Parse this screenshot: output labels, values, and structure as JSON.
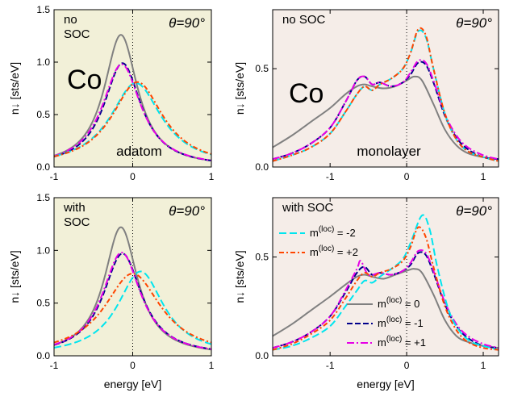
{
  "chart_data": [
    {
      "type": "line",
      "panel": "top-left",
      "bg": "#f2f0d8",
      "xlim": [
        -1,
        1
      ],
      "ylim": [
        0,
        1.5
      ],
      "xticks": [
        "-1",
        "0",
        "1"
      ],
      "yticks": [
        "0.0",
        "0.5",
        "1.0",
        "1.5"
      ],
      "ylabel": "n↓  [sts/eV]",
      "texts": {
        "soc": "no\nSOC",
        "theta": "θ=90°",
        "element": "Co",
        "label": "adatom"
      },
      "series": [
        {
          "color": "#808080",
          "dash": "",
          "e0": -0.15,
          "g": 0.26,
          "amp": 1.26
        },
        {
          "color": "#00008b",
          "dash": "7,3",
          "e0": -0.13,
          "g": 0.29,
          "amp": 0.99
        },
        {
          "color": "#e600e6",
          "dash": "9,3,2,3",
          "e0": -0.14,
          "g": 0.3,
          "amp": 0.98
        },
        {
          "color": "#00e5ee",
          "dash": "9,4",
          "e0": 0.04,
          "g": 0.4,
          "amp": 0.8
        },
        {
          "color": "#ff4500",
          "dash": "6,3,2,3",
          "e0": 0.06,
          "g": 0.4,
          "amp": 0.81
        }
      ]
    },
    {
      "type": "line",
      "panel": "top-right",
      "bg": "#f5ede8",
      "xlim": [
        -1.75,
        1.2
      ],
      "ylim": [
        0,
        0.8
      ],
      "xticks": [
        "-1",
        "0",
        "1"
      ],
      "yticks": [
        "0.0",
        "0.5"
      ],
      "ylabel": "n↓  [sts/eV]",
      "texts": {
        "soc": "no SOC",
        "theta": "θ=90°",
        "element": "Co",
        "label": "monolayer"
      },
      "series": [
        {
          "color": "#808080",
          "dash": "",
          "x": [
            -1.75,
            -1.5,
            -1.25,
            -1.0,
            -0.8,
            -0.65,
            -0.55,
            -0.45,
            -0.3,
            -0.15,
            0,
            0.1,
            0.2,
            0.35,
            0.5,
            0.65,
            0.8,
            1.0,
            1.2
          ],
          "y": [
            0.1,
            0.16,
            0.23,
            0.3,
            0.37,
            0.41,
            0.42,
            0.41,
            0.4,
            0.41,
            0.44,
            0.46,
            0.44,
            0.32,
            0.19,
            0.11,
            0.07,
            0.05,
            0.04
          ]
        },
        {
          "color": "#00008b",
          "dash": "7,3",
          "x": [
            -1.75,
            -1.5,
            -1.25,
            -1.0,
            -0.8,
            -0.65,
            -0.55,
            -0.45,
            -0.35,
            -0.2,
            -0.05,
            0.05,
            0.15,
            0.25,
            0.35,
            0.5,
            0.65,
            0.8,
            1.0,
            1.2
          ],
          "y": [
            0.04,
            0.07,
            0.12,
            0.2,
            0.33,
            0.44,
            0.46,
            0.42,
            0.43,
            0.41,
            0.43,
            0.47,
            0.53,
            0.52,
            0.43,
            0.26,
            0.15,
            0.09,
            0.05,
            0.04
          ]
        },
        {
          "color": "#e600e6",
          "dash": "9,3,2,3",
          "x": [
            -1.75,
            -1.5,
            -1.25,
            -1.0,
            -0.8,
            -0.65,
            -0.55,
            -0.45,
            -0.35,
            -0.2,
            -0.05,
            0.05,
            0.15,
            0.25,
            0.35,
            0.5,
            0.65,
            0.8,
            1.0,
            1.2
          ],
          "y": [
            0.04,
            0.07,
            0.12,
            0.2,
            0.33,
            0.44,
            0.46,
            0.42,
            0.43,
            0.41,
            0.43,
            0.48,
            0.54,
            0.53,
            0.44,
            0.27,
            0.16,
            0.1,
            0.06,
            0.04
          ]
        },
        {
          "color": "#00e5ee",
          "dash": "9,4",
          "x": [
            -1.75,
            -1.5,
            -1.25,
            -1.0,
            -0.8,
            -0.65,
            -0.55,
            -0.45,
            -0.35,
            -0.2,
            -0.05,
            0.05,
            0.15,
            0.25,
            0.35,
            0.5,
            0.65,
            0.8,
            1.0,
            1.2
          ],
          "y": [
            0.03,
            0.06,
            0.1,
            0.17,
            0.28,
            0.37,
            0.41,
            0.39,
            0.42,
            0.45,
            0.5,
            0.58,
            0.69,
            0.66,
            0.5,
            0.27,
            0.14,
            0.08,
            0.05,
            0.03
          ]
        },
        {
          "color": "#ff4500",
          "dash": "6,3,2,3",
          "x": [
            -1.75,
            -1.5,
            -1.25,
            -1.0,
            -0.8,
            -0.65,
            -0.55,
            -0.45,
            -0.35,
            -0.2,
            -0.05,
            0.05,
            0.15,
            0.25,
            0.35,
            0.5,
            0.65,
            0.8,
            1.0,
            1.2
          ],
          "y": [
            0.03,
            0.06,
            0.1,
            0.17,
            0.28,
            0.37,
            0.41,
            0.39,
            0.42,
            0.45,
            0.5,
            0.58,
            0.7,
            0.67,
            0.5,
            0.27,
            0.14,
            0.08,
            0.05,
            0.03
          ]
        }
      ]
    },
    {
      "type": "line",
      "panel": "bottom-left",
      "bg": "#f2f0d8",
      "xlim": [
        -1,
        1
      ],
      "ylim": [
        0,
        1.5
      ],
      "xticks": [
        "-1",
        "0",
        "1"
      ],
      "yticks": [
        "0.0",
        "0.5",
        "1.0",
        "1.5"
      ],
      "ylabel": "n↓  [sts/eV]",
      "xlabel": "energy   [eV]",
      "texts": {
        "soc": "with\nSOC",
        "theta": "θ=90°"
      },
      "series": [
        {
          "color": "#808080",
          "dash": "",
          "e0": -0.15,
          "g": 0.26,
          "amp": 1.22
        },
        {
          "color": "#00008b",
          "dash": "7,3",
          "e0": -0.13,
          "g": 0.3,
          "amp": 0.97
        },
        {
          "color": "#e600e6",
          "dash": "9,3,2,3",
          "e0": -0.14,
          "g": 0.3,
          "amp": 0.98
        },
        {
          "color": "#00e5ee",
          "dash": "9,4",
          "e0": 0.1,
          "g": 0.36,
          "amp": 0.8
        },
        {
          "color": "#ff4500",
          "dash": "6,3,2,3",
          "e0": 0.0,
          "g": 0.44,
          "amp": 0.78
        }
      ]
    },
    {
      "type": "line",
      "panel": "bottom-right",
      "bg": "#f5ede8",
      "xlim": [
        -1.75,
        1.2
      ],
      "ylim": [
        0,
        0.8
      ],
      "xticks": [
        "-1",
        "0",
        "1"
      ],
      "yticks": [
        "0.0",
        "0.5"
      ],
      "ylabel": "n↓  [sts/eV]",
      "xlabel": "energy   [eV]",
      "texts": {
        "soc": "with SOC",
        "theta": "θ=90°"
      },
      "legend": [
        {
          "label": "m(loc) = -2",
          "color": "#00e5ee",
          "dash": "9,4"
        },
        {
          "label": "m(loc) = +2",
          "color": "#ff4500",
          "dash": "6,3,2,3"
        },
        {
          "label": "m(loc) = 0",
          "color": "#808080",
          "dash": ""
        },
        {
          "label": "m(loc) = -1",
          "color": "#00008b",
          "dash": "7,3"
        },
        {
          "label": "m(loc) = +1",
          "color": "#e600e6",
          "dash": "9,3,2,3"
        }
      ],
      "series": [
        {
          "color": "#808080",
          "dash": "",
          "x": [
            -1.75,
            -1.5,
            -1.25,
            -1.0,
            -0.8,
            -0.65,
            -0.55,
            -0.45,
            -0.3,
            -0.15,
            0,
            0.1,
            0.2,
            0.35,
            0.5,
            0.65,
            0.8,
            1.0,
            1.2
          ],
          "y": [
            0.1,
            0.16,
            0.23,
            0.3,
            0.36,
            0.4,
            0.41,
            0.4,
            0.39,
            0.41,
            0.43,
            0.44,
            0.42,
            0.31,
            0.18,
            0.1,
            0.07,
            0.05,
            0.04
          ]
        },
        {
          "color": "#00008b",
          "dash": "7,3",
          "x": [
            -1.75,
            -1.5,
            -1.25,
            -1.0,
            -0.8,
            -0.65,
            -0.55,
            -0.45,
            -0.35,
            -0.2,
            -0.05,
            0.05,
            0.15,
            0.25,
            0.35,
            0.5,
            0.65,
            0.8,
            1.0,
            1.2
          ],
          "y": [
            0.04,
            0.07,
            0.12,
            0.2,
            0.32,
            0.42,
            0.45,
            0.41,
            0.42,
            0.41,
            0.43,
            0.46,
            0.52,
            0.51,
            0.42,
            0.26,
            0.15,
            0.09,
            0.05,
            0.04
          ]
        },
        {
          "color": "#e600e6",
          "dash": "9,3,2,3",
          "x": [
            -1.75,
            -1.5,
            -1.25,
            -1.0,
            -0.8,
            -0.65,
            -0.6,
            -0.5,
            -0.35,
            -0.2,
            -0.05,
            0.05,
            0.15,
            0.25,
            0.35,
            0.5,
            0.65,
            0.8,
            1.0,
            1.2
          ],
          "y": [
            0.04,
            0.07,
            0.12,
            0.2,
            0.33,
            0.44,
            0.48,
            0.41,
            0.42,
            0.41,
            0.43,
            0.47,
            0.53,
            0.52,
            0.43,
            0.27,
            0.16,
            0.1,
            0.06,
            0.04
          ]
        },
        {
          "color": "#00e5ee",
          "dash": "9,4",
          "x": [
            -1.75,
            -1.5,
            -1.25,
            -1.0,
            -0.8,
            -0.65,
            -0.55,
            -0.45,
            -0.35,
            -0.2,
            -0.05,
            0.05,
            0.2,
            0.3,
            0.4,
            0.55,
            0.7,
            0.85,
            1.0,
            1.2
          ],
          "y": [
            0.03,
            0.05,
            0.09,
            0.15,
            0.25,
            0.33,
            0.38,
            0.37,
            0.4,
            0.44,
            0.49,
            0.57,
            0.71,
            0.64,
            0.45,
            0.23,
            0.12,
            0.07,
            0.05,
            0.03
          ]
        },
        {
          "color": "#ff4500",
          "dash": "6,3,2,3",
          "x": [
            -1.75,
            -1.5,
            -1.25,
            -1.0,
            -0.8,
            -0.65,
            -0.55,
            -0.45,
            -0.35,
            -0.2,
            -0.05,
            0.05,
            0.15,
            0.25,
            0.35,
            0.5,
            0.65,
            0.8,
            1.0,
            1.2
          ],
          "y": [
            0.03,
            0.06,
            0.11,
            0.18,
            0.29,
            0.38,
            0.42,
            0.4,
            0.42,
            0.44,
            0.48,
            0.55,
            0.65,
            0.6,
            0.45,
            0.25,
            0.13,
            0.07,
            0.04,
            0.03
          ]
        }
      ]
    }
  ]
}
